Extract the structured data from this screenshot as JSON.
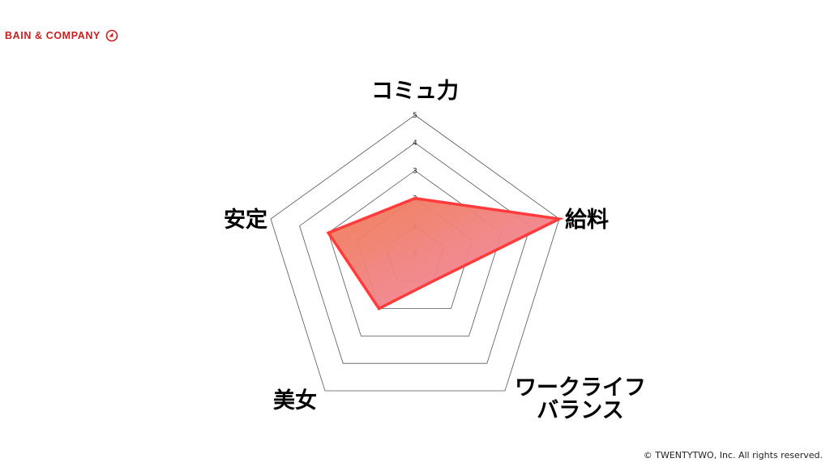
{
  "brand": {
    "name": "BAIN & COMPANY",
    "icon": "bain-logo-icon",
    "color": "#cc1f1f"
  },
  "footer": {
    "copyright": "© TWENTYTWO, Inc. All rights reserved."
  },
  "chart_data": {
    "type": "radar",
    "axes": [
      "コミュ力",
      "給料",
      "ワークライフ\nバランス",
      "美女",
      "安定"
    ],
    "axis_label_lines": [
      [
        "コミュ力"
      ],
      [
        "給料"
      ],
      [
        "ワークライフ",
        "バランス"
      ],
      [
        "美女"
      ],
      [
        "安定"
      ]
    ],
    "ticks": [
      "0",
      "1",
      "2",
      "3",
      "4",
      "5"
    ],
    "range": [
      0,
      5
    ],
    "series": [
      {
        "values": [
          2,
          5,
          1,
          2,
          3
        ]
      }
    ],
    "colors": {
      "stroke": "#ff3b3b",
      "fill_start": "#f07a50",
      "fill_end": "#f08cb4",
      "grid": "#555555"
    }
  }
}
